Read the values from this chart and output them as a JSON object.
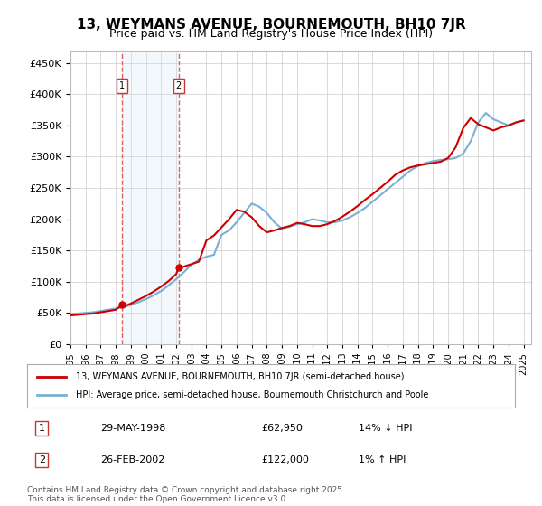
{
  "title": "13, WEYMANS AVENUE, BOURNEMOUTH, BH10 7JR",
  "subtitle": "Price paid vs. HM Land Registry's House Price Index (HPI)",
  "legend_line1": "13, WEYMANS AVENUE, BOURNEMOUTH, BH10 7JR (semi-detached house)",
  "legend_line2": "HPI: Average price, semi-detached house, Bournemouth Christchurch and Poole",
  "footer": "Contains HM Land Registry data © Crown copyright and database right 2025.\nThis data is licensed under the Open Government Licence v3.0.",
  "transactions": [
    {
      "label": "1",
      "date": "29-MAY-1998",
      "price": 62950,
      "hpi_diff": "14% ↓ HPI",
      "x": 1998.41
    },
    {
      "label": "2",
      "date": "26-FEB-2002",
      "price": 122000,
      "hpi_diff": "1% ↑ HPI",
      "x": 2002.15
    }
  ],
  "vline_color": "#e05050",
  "vshade_color": "#d0e4f7",
  "hpi_color": "#7ab0d4",
  "price_color": "#cc0000",
  "marker_color": "#cc0000",
  "box_color": "#cc3333",
  "ylim": [
    0,
    470000
  ],
  "yticks": [
    0,
    50000,
    100000,
    150000,
    200000,
    250000,
    300000,
    350000,
    400000,
    450000
  ],
  "xlim": [
    1995,
    2025.5
  ],
  "xticks": [
    1995,
    1996,
    1997,
    1998,
    1999,
    2000,
    2001,
    2002,
    2003,
    2004,
    2005,
    2006,
    2007,
    2008,
    2009,
    2010,
    2011,
    2012,
    2013,
    2014,
    2015,
    2016,
    2017,
    2018,
    2019,
    2020,
    2021,
    2022,
    2023,
    2024,
    2025
  ],
  "grid_color": "#cccccc",
  "bg_color": "#ffffff",
  "hpi_years": [
    1995,
    1995.5,
    1996,
    1996.5,
    1997,
    1997.5,
    1998,
    1998.5,
    1999,
    1999.5,
    2000,
    2000.5,
    2001,
    2001.5,
    2002,
    2002.5,
    2003,
    2003.5,
    2004,
    2004.5,
    2005,
    2005.5,
    2006,
    2006.5,
    2007,
    2007.5,
    2008,
    2008.5,
    2009,
    2009.5,
    2010,
    2010.5,
    2011,
    2011.5,
    2012,
    2012.5,
    2013,
    2013.5,
    2014,
    2014.5,
    2015,
    2015.5,
    2016,
    2016.5,
    2017,
    2017.5,
    2018,
    2018.5,
    2019,
    2019.5,
    2020,
    2020.5,
    2021,
    2021.5,
    2022,
    2022.5,
    2023,
    2023.5,
    2024,
    2024.5,
    2025
  ],
  "hpi_values": [
    48000,
    49000,
    50000,
    51000,
    53000,
    55000,
    57000,
    59000,
    63000,
    67000,
    72000,
    78000,
    85000,
    94000,
    104000,
    115000,
    127000,
    135000,
    140000,
    143000,
    175000,
    182000,
    195000,
    210000,
    225000,
    220000,
    210000,
    195000,
    185000,
    188000,
    192000,
    195000,
    200000,
    198000,
    195000,
    195000,
    198000,
    203000,
    210000,
    218000,
    228000,
    238000,
    248000,
    258000,
    268000,
    278000,
    285000,
    290000,
    293000,
    295000,
    296000,
    298000,
    305000,
    325000,
    355000,
    370000,
    360000,
    355000,
    350000,
    355000,
    358000
  ],
  "price_years": [
    1995,
    1995.5,
    1996,
    1996.5,
    1997,
    1997.5,
    1998,
    1998.41,
    1998.5,
    1999,
    1999.5,
    2000,
    2000.5,
    2001,
    2001.5,
    2002,
    2002.15,
    2002.5,
    2003,
    2003.5,
    2004,
    2004.5,
    2005,
    2005.5,
    2006,
    2006.5,
    2007,
    2007.5,
    2008,
    2008.5,
    2009,
    2009.5,
    2010,
    2010.5,
    2011,
    2011.5,
    2012,
    2012.5,
    2013,
    2013.5,
    2014,
    2014.5,
    2015,
    2015.5,
    2016,
    2016.5,
    2017,
    2017.5,
    2018,
    2018.5,
    2019,
    2019.5,
    2020,
    2020.5,
    2021,
    2021.5,
    2022,
    2022.5,
    2023,
    2023.5,
    2024,
    2024.5,
    2025
  ],
  "price_values": [
    46000,
    47000,
    48000,
    49000,
    51000,
    53000,
    55000,
    62950,
    60000,
    65000,
    71000,
    77000,
    84000,
    92000,
    101000,
    112000,
    122000,
    124000,
    128000,
    132000,
    166000,
    174000,
    187000,
    200000,
    215000,
    212000,
    203000,
    189000,
    179000,
    182000,
    186000,
    189000,
    194000,
    192000,
    189000,
    189000,
    192000,
    197000,
    204000,
    212000,
    221000,
    231000,
    240000,
    250000,
    260000,
    271000,
    278000,
    283000,
    286000,
    288000,
    290000,
    292000,
    298000,
    315000,
    346000,
    362000,
    352000,
    347000,
    342000,
    347000,
    350000,
    355000,
    358000
  ]
}
